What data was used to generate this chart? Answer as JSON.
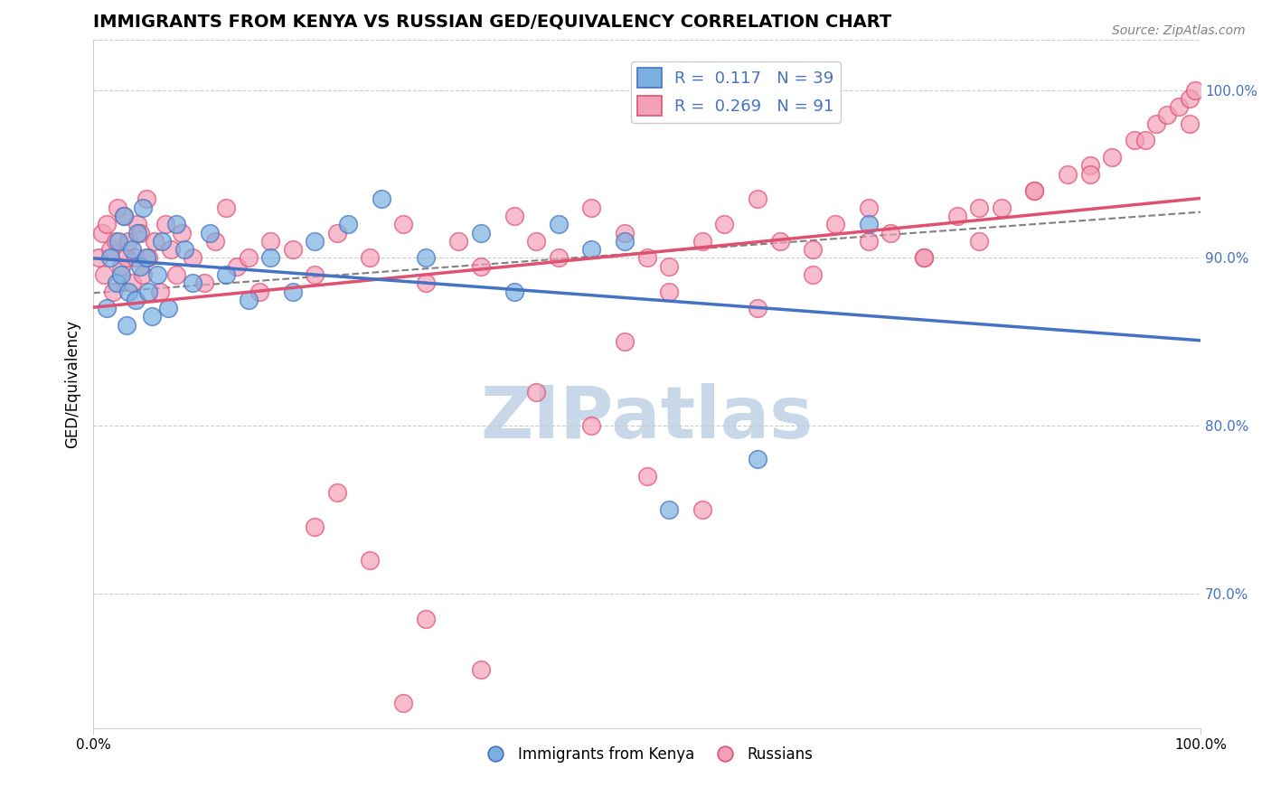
{
  "title": "IMMIGRANTS FROM KENYA VS RUSSIAN GED/EQUIVALENCY CORRELATION CHART",
  "source": "Source: ZipAtlas.com",
  "ylabel": "GED/Equivalency",
  "xlim": [
    0.0,
    100.0
  ],
  "ylim": [
    62.0,
    103.0
  ],
  "right_yticks": [
    70.0,
    80.0,
    90.0,
    100.0
  ],
  "right_ytick_labels": [
    "70.0%",
    "80.0%",
    "90.0%",
    "100.0%"
  ],
  "kenya_color": "#7ab0e0",
  "kenya_color_line": "#4472c4",
  "russia_color": "#f4a0b8",
  "russia_color_line": "#e05070",
  "kenya_R": 0.117,
  "kenya_N": 39,
  "russia_R": 0.269,
  "russia_N": 91,
  "watermark": "ZIPatlas",
  "watermark_color": "#c8d8e8",
  "kenya_x": [
    1.2,
    1.5,
    2.1,
    2.3,
    2.5,
    2.8,
    3.0,
    3.2,
    3.5,
    3.8,
    4.0,
    4.2,
    4.5,
    4.8,
    5.0,
    5.3,
    5.8,
    6.2,
    6.8,
    7.5,
    8.2,
    9.0,
    10.5,
    12.0,
    14.0,
    16.0,
    18.0,
    20.0,
    23.0,
    26.0,
    30.0,
    35.0,
    38.0,
    42.0,
    45.0,
    48.0,
    52.0,
    60.0,
    70.0
  ],
  "kenya_y": [
    87.0,
    90.0,
    88.5,
    91.0,
    89.0,
    92.5,
    86.0,
    88.0,
    90.5,
    87.5,
    91.5,
    89.5,
    93.0,
    90.0,
    88.0,
    86.5,
    89.0,
    91.0,
    87.0,
    92.0,
    90.5,
    88.5,
    91.5,
    89.0,
    87.5,
    90.0,
    88.0,
    91.0,
    92.0,
    93.5,
    90.0,
    91.5,
    88.0,
    92.0,
    90.5,
    91.0,
    75.0,
    78.0,
    92.0
  ],
  "russia_x": [
    0.5,
    0.8,
    1.0,
    1.2,
    1.5,
    1.8,
    2.0,
    2.2,
    2.5,
    2.8,
    3.0,
    3.2,
    3.5,
    3.8,
    4.0,
    4.2,
    4.5,
    4.8,
    5.0,
    5.5,
    6.0,
    6.5,
    7.0,
    7.5,
    8.0,
    9.0,
    10.0,
    11.0,
    12.0,
    13.0,
    14.0,
    15.0,
    16.0,
    18.0,
    20.0,
    22.0,
    25.0,
    28.0,
    30.0,
    33.0,
    35.0,
    38.0,
    40.0,
    42.0,
    45.0,
    48.0,
    50.0,
    52.0,
    55.0,
    57.0,
    60.0,
    62.0,
    65.0,
    67.0,
    70.0,
    72.0,
    75.0,
    78.0,
    80.0,
    82.0,
    85.0,
    88.0,
    90.0,
    92.0,
    94.0,
    96.0,
    97.0,
    98.0,
    99.0,
    99.5,
    50.0,
    55.0,
    30.0,
    35.0,
    20.0,
    22.0,
    25.0,
    40.0,
    45.0,
    48.0,
    52.0,
    60.0,
    65.0,
    70.0,
    75.0,
    80.0,
    85.0,
    90.0,
    95.0,
    99.0,
    28.0
  ],
  "russia_y": [
    90.0,
    91.5,
    89.0,
    92.0,
    90.5,
    88.0,
    91.0,
    93.0,
    89.5,
    92.5,
    90.0,
    91.0,
    88.5,
    90.0,
    92.0,
    91.5,
    89.0,
    93.5,
    90.0,
    91.0,
    88.0,
    92.0,
    90.5,
    89.0,
    91.5,
    90.0,
    88.5,
    91.0,
    93.0,
    89.5,
    90.0,
    88.0,
    91.0,
    90.5,
    89.0,
    91.5,
    90.0,
    92.0,
    88.5,
    91.0,
    89.5,
    92.5,
    91.0,
    90.0,
    93.0,
    91.5,
    90.0,
    89.5,
    91.0,
    92.0,
    93.5,
    91.0,
    90.5,
    92.0,
    93.0,
    91.5,
    90.0,
    92.5,
    91.0,
    93.0,
    94.0,
    95.0,
    95.5,
    96.0,
    97.0,
    98.0,
    98.5,
    99.0,
    99.5,
    100.0,
    77.0,
    75.0,
    68.5,
    65.5,
    74.0,
    76.0,
    72.0,
    82.0,
    80.0,
    85.0,
    88.0,
    87.0,
    89.0,
    91.0,
    90.0,
    93.0,
    94.0,
    95.0,
    97.0,
    98.0,
    63.5
  ]
}
